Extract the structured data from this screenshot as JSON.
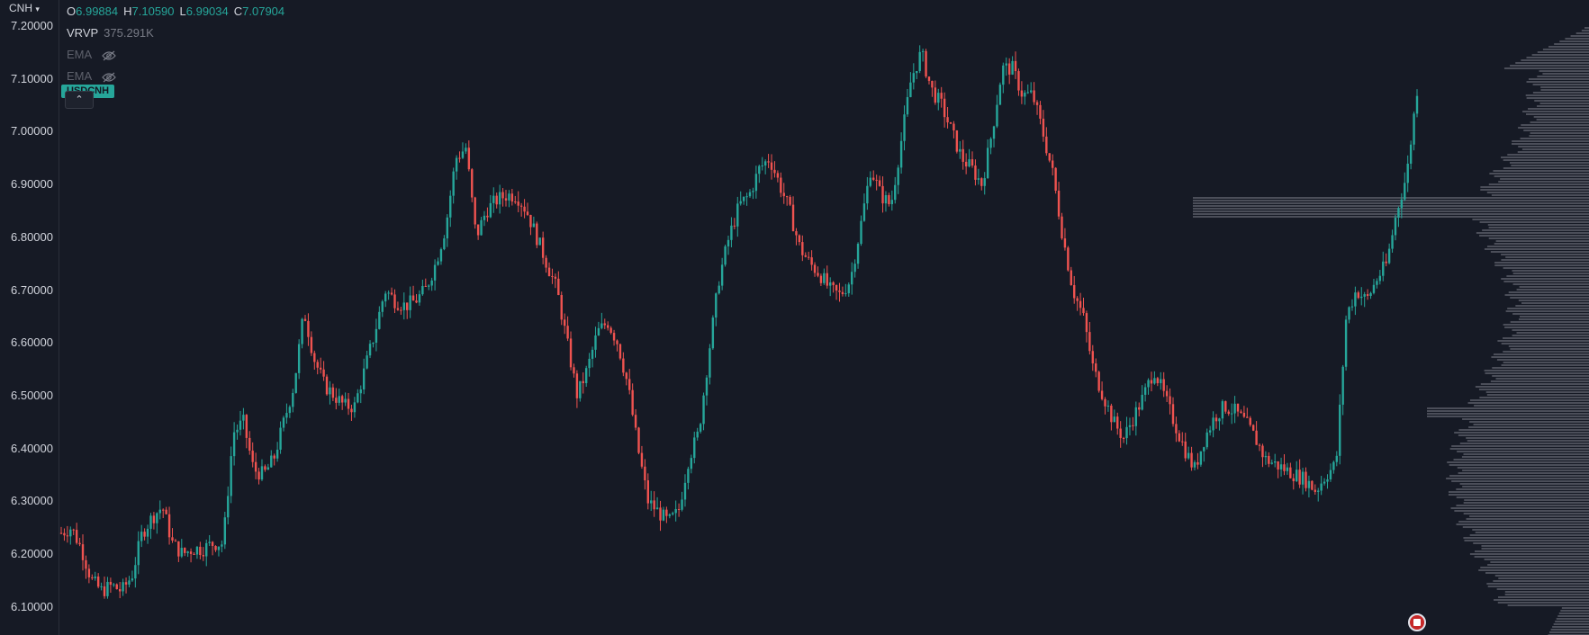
{
  "symbol": {
    "label": "CNH",
    "chevron_icon": "chevron-down-icon"
  },
  "ohlc": {
    "o_label": "O",
    "o": "6.99884",
    "h_label": "H",
    "h": "7.10590",
    "l_label": "L",
    "l": "6.99034",
    "c_label": "C",
    "c": "7.07904"
  },
  "indicators": {
    "vrvp": {
      "name": "VRVP",
      "value": "375.291K"
    },
    "ema1": {
      "name": "EMA",
      "icon": "eye-hidden-icon"
    },
    "ema2": {
      "name": "EMA",
      "icon": "eye-hidden-icon"
    }
  },
  "price_badge": "USDCNH",
  "collapse_icon": "chevron-up-icon",
  "event_icon": "us-flag-icon",
  "colors": {
    "up": "#26a69a",
    "down": "#ef5350",
    "background": "#161a25",
    "profile": "#5d606b"
  },
  "chart_data": {
    "type": "candlestick",
    "y_ticks": [
      "7.20000",
      "7.10000",
      "7.00000",
      "6.90000",
      "6.80000",
      "6.70000",
      "6.60000",
      "6.50000",
      "6.40000",
      "6.30000",
      "6.20000",
      "6.10000"
    ],
    "ylim": [
      6.05,
      7.205
    ],
    "close_path": [
      6.24,
      6.25,
      6.21,
      6.15,
      6.13,
      6.14,
      6.13,
      6.16,
      6.24,
      6.27,
      6.29,
      6.22,
      6.2,
      6.21,
      6.21,
      6.22,
      6.22,
      6.43,
      6.45,
      6.36,
      6.35,
      6.38,
      6.45,
      6.52,
      6.66,
      6.57,
      6.52,
      6.5,
      6.48,
      6.48,
      6.55,
      6.62,
      6.7,
      6.68,
      6.67,
      6.68,
      6.7,
      6.75,
      6.82,
      6.95,
      6.97,
      6.8,
      6.85,
      6.87,
      6.88,
      6.88,
      6.85,
      6.8,
      6.75,
      6.7,
      6.6,
      6.5,
      6.55,
      6.62,
      6.64,
      6.6,
      6.52,
      6.4,
      6.3,
      6.28,
      6.26,
      6.28,
      6.38,
      6.43,
      6.58,
      6.72,
      6.8,
      6.86,
      6.88,
      6.93,
      6.95,
      6.9,
      6.85,
      6.78,
      6.75,
      6.73,
      6.7,
      6.69,
      6.72,
      6.82,
      6.93,
      6.88,
      6.86,
      6.98,
      7.1,
      7.15,
      7.08,
      7.05,
      7.0,
      6.95,
      6.93,
      6.9,
      7.0,
      7.12,
      7.12,
      7.07,
      7.07,
      7.0,
      6.92,
      6.8,
      6.7,
      6.65,
      6.55,
      6.5,
      6.45,
      6.42,
      6.46,
      6.5,
      6.55,
      6.5,
      6.45,
      6.4,
      6.36,
      6.42,
      6.46,
      6.48,
      6.47,
      6.45,
      6.42,
      6.38,
      6.37,
      6.36,
      6.35,
      6.34,
      6.32,
      6.35,
      6.37,
      6.65,
      6.7,
      6.68,
      6.72,
      6.75,
      6.85,
      6.92,
      7.08
    ]
  }
}
